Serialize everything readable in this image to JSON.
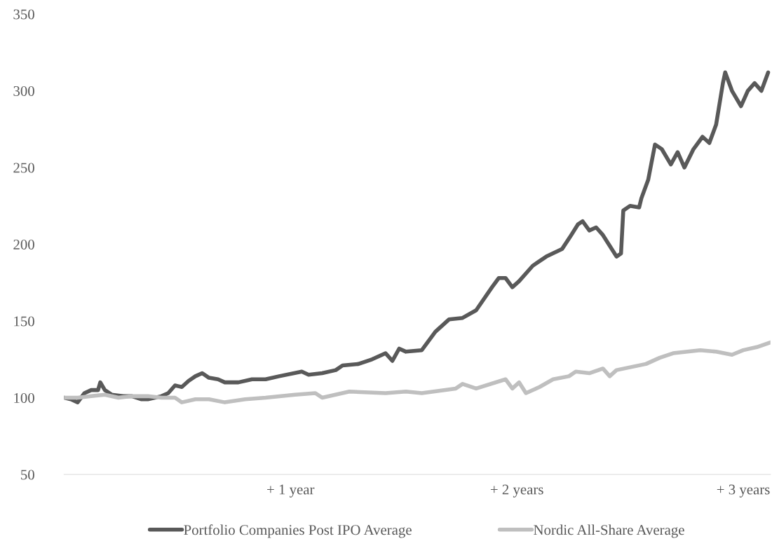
{
  "chart_data": {
    "type": "line",
    "xlim": [
      0,
      3.12
    ],
    "xticks": [
      {
        "value": 1,
        "label": "+ 1 year"
      },
      {
        "value": 2,
        "label": "+ 2 years"
      },
      {
        "value": 3,
        "label": "+ 3 years"
      }
    ],
    "ylim": [
      50,
      350
    ],
    "yticks": [
      50,
      100,
      150,
      200,
      250,
      300,
      350
    ],
    "grid": false,
    "legend": "bottom",
    "marker": "none",
    "line_style": "solid",
    "series": [
      {
        "name": "Portfolio Companies Post IPO Average",
        "color": "#595959",
        "x": [
          0,
          0.03,
          0.06,
          0.09,
          0.12,
          0.15,
          0.16,
          0.18,
          0.21,
          0.26,
          0.3,
          0.34,
          0.37,
          0.43,
          0.46,
          0.49,
          0.52,
          0.55,
          0.58,
          0.61,
          0.64,
          0.68,
          0.71,
          0.77,
          0.83,
          0.89,
          0.95,
          1.05,
          1.08,
          1.14,
          1.2,
          1.23,
          1.3,
          1.36,
          1.42,
          1.45,
          1.48,
          1.51,
          1.58,
          1.64,
          1.7,
          1.76,
          1.82,
          1.89,
          1.92,
          1.95,
          1.98,
          2.01,
          2.07,
          2.13,
          2.2,
          2.24,
          2.27,
          2.29,
          2.32,
          2.35,
          2.38,
          2.41,
          2.44,
          2.46,
          2.47,
          2.5,
          2.54,
          2.55,
          2.58,
          2.61,
          2.64,
          2.68,
          2.71,
          2.74,
          2.78,
          2.82,
          2.85,
          2.88,
          2.91,
          2.92,
          2.95,
          2.99,
          3.02,
          3.05,
          3.08,
          3.11
        ],
        "values": [
          100,
          99,
          97,
          103,
          105,
          105,
          110,
          105,
          102,
          101,
          101,
          99,
          99,
          101,
          103,
          108,
          107,
          111,
          114,
          116,
          113,
          112,
          110,
          110,
          112,
          112,
          114,
          117,
          115,
          116,
          118,
          121,
          122,
          125,
          129,
          124,
          132,
          130,
          131,
          143,
          151,
          152,
          157,
          172,
          178,
          178,
          172,
          176,
          186,
          192,
          197,
          206,
          213,
          215,
          209,
          211,
          206,
          199,
          192,
          194,
          222,
          225,
          224,
          230,
          242,
          265,
          262,
          252,
          260,
          250,
          262,
          270,
          266,
          278,
          305,
          312,
          300,
          290,
          300,
          305,
          300,
          312
        ]
      },
      {
        "name": "Nordic All-Share Average",
        "color": "#bfbfbf",
        "x": [
          0,
          0.06,
          0.12,
          0.18,
          0.24,
          0.3,
          0.37,
          0.43,
          0.49,
          0.52,
          0.58,
          0.64,
          0.71,
          0.8,
          0.89,
          1.02,
          1.11,
          1.14,
          1.26,
          1.42,
          1.51,
          1.58,
          1.73,
          1.76,
          1.82,
          1.95,
          1.98,
          2.01,
          2.04,
          2.1,
          2.16,
          2.23,
          2.26,
          2.32,
          2.38,
          2.41,
          2.44,
          2.57,
          2.63,
          2.69,
          2.81,
          2.88,
          2.95,
          3.0,
          3.06,
          3.12
        ],
        "values": [
          100,
          100,
          101,
          102,
          100,
          101,
          101,
          100,
          100,
          97,
          99,
          99,
          97,
          99,
          100,
          102,
          103,
          100,
          104,
          103,
          104,
          103,
          106,
          109,
          106,
          112,
          106,
          110,
          103,
          107,
          112,
          114,
          117,
          116,
          119,
          114,
          118,
          122,
          126,
          129,
          131,
          130,
          128,
          131,
          133,
          136
        ]
      }
    ]
  }
}
